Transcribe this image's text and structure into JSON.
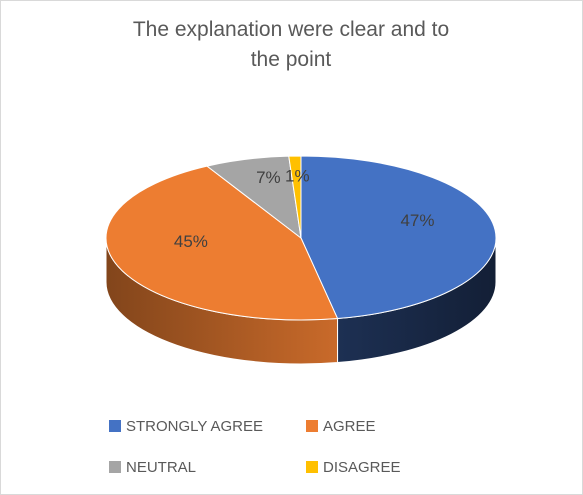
{
  "chart_data": {
    "type": "pie",
    "title": "The explanation were clear and to the point",
    "categories": [
      "STRONGLY AGREE",
      "AGREE",
      "NEUTRAL",
      "DISAGREE"
    ],
    "values": [
      47,
      45,
      7,
      1
    ],
    "value_labels": [
      "47%",
      "45%",
      "7%",
      "1%"
    ],
    "colors": [
      "#4472c4",
      "#ed7d31",
      "#a5a5a5",
      "#ffc000"
    ]
  }
}
